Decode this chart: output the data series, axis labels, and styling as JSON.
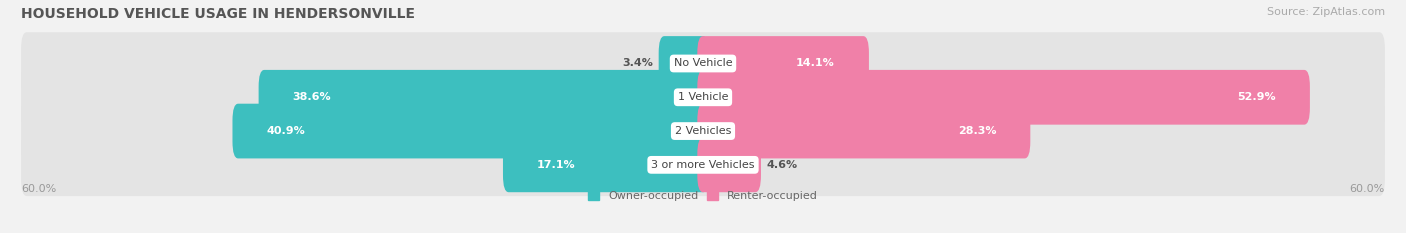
{
  "title": "HOUSEHOLD VEHICLE USAGE IN HENDERSONVILLE",
  "source": "Source: ZipAtlas.com",
  "categories": [
    "No Vehicle",
    "1 Vehicle",
    "2 Vehicles",
    "3 or more Vehicles"
  ],
  "owner_values": [
    3.4,
    38.6,
    40.9,
    17.1
  ],
  "renter_values": [
    14.1,
    52.9,
    28.3,
    4.6
  ],
  "owner_color": "#3DBFBF",
  "renter_color": "#F080A8",
  "owner_label": "Owner-occupied",
  "renter_label": "Renter-occupied",
  "axis_max": 60.0,
  "axis_label": "60.0%",
  "background_color": "#f2f2f2",
  "bar_bg_color": "#e4e4e4",
  "row_sep_color": "#f2f2f2",
  "title_fontsize": 10,
  "source_fontsize": 8,
  "label_fontsize": 8,
  "value_fontsize": 8
}
